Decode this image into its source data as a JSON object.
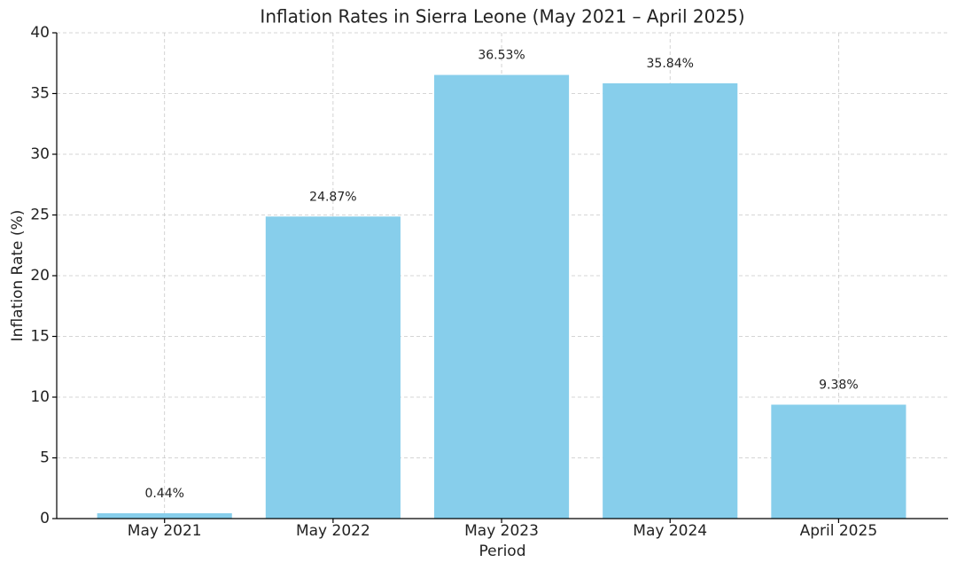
{
  "chart_data": {
    "type": "bar",
    "title": "Inflation Rates in Sierra Leone (May 2021 – April 2025)",
    "x_label": "Period",
    "y_label": "Inflation Rate (%)",
    "categories": [
      "May 2021",
      "May 2022",
      "May 2023",
      "May 2024",
      "April 2025"
    ],
    "values": [
      0.44,
      24.87,
      36.53,
      35.84,
      9.38
    ],
    "value_labels": [
      "0.44%",
      "24.87%",
      "36.53%",
      "35.84%",
      "9.38%"
    ],
    "color": "#87ceeb",
    "ylim": [
      0,
      40
    ],
    "yticks": [
      0,
      5,
      10,
      15,
      20,
      25,
      30,
      35,
      40
    ],
    "grid": true
  }
}
